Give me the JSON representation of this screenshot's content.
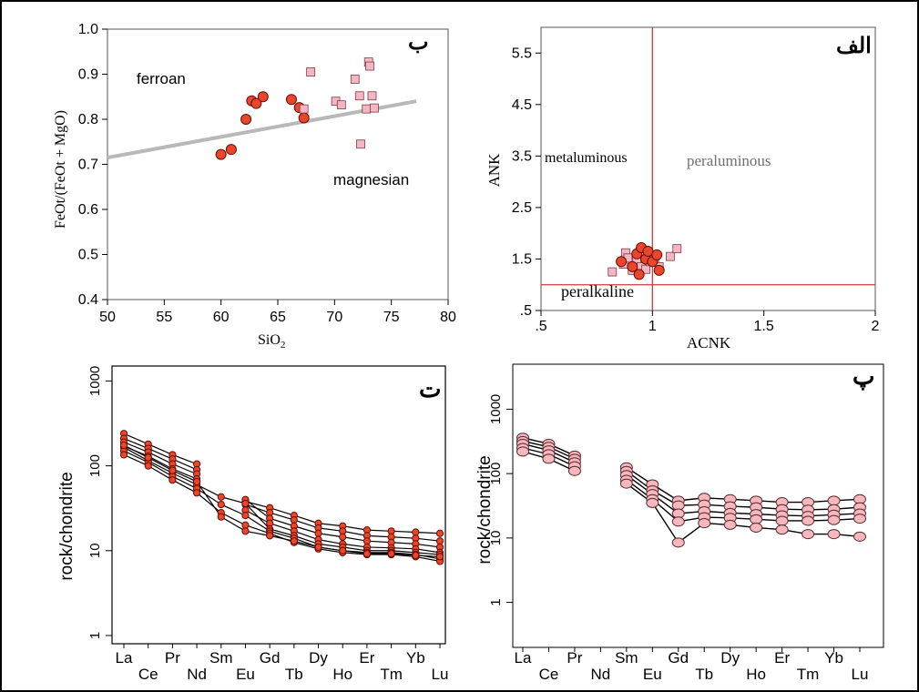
{
  "figure": {
    "border_color": "#000000",
    "marker_colors": {
      "red_circle_fill": "#e8472c",
      "red_circle_stroke": "#6b0a00",
      "pink_square_fill": "#f4b6c2",
      "pink_square_stroke": "#7a3b47",
      "pink_circle_fill": "#f6b7bd",
      "pink_circle_stroke": "#5a2a2e",
      "line_color": "#000000",
      "ref_line_red": "#d23a3a",
      "ref_line_gray": "#b8b8b8"
    }
  },
  "chart_data": [
    {
      "id": "B",
      "type": "scatter",
      "panel_label": "ب",
      "xlabel": "SiO",
      "xlabel_sub": "2",
      "ylabel": "FeOt/(FeOt + MgO)",
      "xlim": [
        50,
        80
      ],
      "ylim": [
        0.4,
        1.0
      ],
      "xticks": [
        "50",
        "55",
        "60",
        "65",
        "70",
        "75",
        "80"
      ],
      "yticks": [
        "0.4",
        "0.5",
        "0.6",
        "0.7",
        "0.8",
        "0.9",
        "1.0"
      ],
      "annotations": [
        {
          "text": "ferroan",
          "x": 53,
          "y": 0.895
        },
        {
          "text": "magnesian",
          "x": 71,
          "y": 0.715
        }
      ],
      "reference_line": {
        "x": [
          50,
          77.2
        ],
        "y": [
          0.715,
          0.84
        ]
      },
      "series": [
        {
          "marker": "circle",
          "points": [
            {
              "x": 60.0,
              "y": 0.722
            },
            {
              "x": 60.9,
              "y": 0.733
            },
            {
              "x": 62.2,
              "y": 0.8
            },
            {
              "x": 62.7,
              "y": 0.841
            },
            {
              "x": 63.1,
              "y": 0.835
            },
            {
              "x": 63.7,
              "y": 0.85
            },
            {
              "x": 66.2,
              "y": 0.844
            },
            {
              "x": 66.9,
              "y": 0.826
            },
            {
              "x": 67.3,
              "y": 0.803
            }
          ]
        },
        {
          "marker": "square",
          "points": [
            {
              "x": 67.3,
              "y": 0.823
            },
            {
              "x": 67.9,
              "y": 0.905
            },
            {
              "x": 70.1,
              "y": 0.84
            },
            {
              "x": 70.6,
              "y": 0.832
            },
            {
              "x": 71.8,
              "y": 0.889
            },
            {
              "x": 72.2,
              "y": 0.852
            },
            {
              "x": 72.3,
              "y": 0.745
            },
            {
              "x": 72.8,
              "y": 0.823
            },
            {
              "x": 73.0,
              "y": 0.927
            },
            {
              "x": 73.1,
              "y": 0.918
            },
            {
              "x": 73.3,
              "y": 0.852
            },
            {
              "x": 73.5,
              "y": 0.825
            }
          ]
        }
      ]
    },
    {
      "id": "A",
      "type": "scatter",
      "panel_label": "الف",
      "xlabel": "ACNK",
      "ylabel": "ANK",
      "xlim": [
        0.5,
        2.0
      ],
      "ylim": [
        0.5,
        6.0
      ],
      "xticks": [
        ".5",
        "1",
        "1.5",
        "2"
      ],
      "xtick_values": [
        0.5,
        1.0,
        1.5,
        2.0
      ],
      "yticks": [
        ".5",
        "1.5",
        "2.5",
        "3.5",
        "4.5",
        "5.5"
      ],
      "ytick_values": [
        0.5,
        1.5,
        2.5,
        3.5,
        4.5,
        5.5
      ],
      "annotations": [
        {
          "text": "metaluminous",
          "x": 0.72,
          "y": 3.5,
          "color": "#000000"
        },
        {
          "text": "peraluminous",
          "x": 1.3,
          "y": 3.4,
          "color": "#6e6e6e"
        },
        {
          "text": "peralkaline",
          "x": 0.8,
          "y": 0.75,
          "color": "#000000"
        }
      ],
      "reference_lines": {
        "vertical_x": 1.0,
        "horizontal_y": 1.0
      },
      "series": [
        {
          "marker": "square",
          "points": [
            {
              "x": 0.82,
              "y": 1.25
            },
            {
              "x": 0.87,
              "y": 1.4
            },
            {
              "x": 0.88,
              "y": 1.62
            },
            {
              "x": 0.89,
              "y": 1.52
            },
            {
              "x": 0.91,
              "y": 1.28
            },
            {
              "x": 0.93,
              "y": 1.47
            },
            {
              "x": 0.95,
              "y": 1.35
            },
            {
              "x": 0.97,
              "y": 1.3
            },
            {
              "x": 0.99,
              "y": 1.45
            },
            {
              "x": 1.01,
              "y": 1.5
            },
            {
              "x": 1.03,
              "y": 1.35
            },
            {
              "x": 1.08,
              "y": 1.55
            },
            {
              "x": 1.11,
              "y": 1.7
            }
          ]
        },
        {
          "marker": "circle",
          "points": [
            {
              "x": 0.86,
              "y": 1.45
            },
            {
              "x": 0.91,
              "y": 1.35
            },
            {
              "x": 0.93,
              "y": 1.6
            },
            {
              "x": 0.94,
              "y": 1.2
            },
            {
              "x": 0.95,
              "y": 1.72
            },
            {
              "x": 0.97,
              "y": 1.5
            },
            {
              "x": 0.98,
              "y": 1.65
            },
            {
              "x": 1.0,
              "y": 1.45
            },
            {
              "x": 1.02,
              "y": 1.58
            },
            {
              "x": 1.03,
              "y": 1.28
            }
          ]
        }
      ]
    },
    {
      "id": "T",
      "type": "line",
      "panel_label": "ت",
      "ylabel": "rock/chondrite",
      "yscale": "log",
      "ylim": [
        1,
        1000
      ],
      "yticks": [
        "1",
        "10",
        "100",
        "1000"
      ],
      "ytick_values": [
        1,
        10,
        100,
        1000
      ],
      "x_labels_top": [
        "La",
        "Pr",
        "Sm",
        "Gd",
        "Dy",
        "Er",
        "Yb"
      ],
      "x_labels_bottom": [
        "Ce",
        "Nd",
        "Eu",
        "Tb",
        "Ho",
        "Tm",
        "Lu"
      ],
      "elements": [
        "La",
        "Ce",
        "Pr",
        "Nd",
        "Sm",
        "Eu",
        "Gd",
        "Tb",
        "Dy",
        "Ho",
        "Er",
        "Tm",
        "Yb",
        "Lu"
      ],
      "series": [
        {
          "values": [
            240,
            180,
            135,
            105,
            null,
            38,
            32,
            26,
            21,
            19.5,
            17.5,
            17,
            16.5,
            16
          ]
        },
        {
          "values": [
            210,
            160,
            120,
            90,
            null,
            35,
            28,
            23,
            18.5,
            17,
            15,
            14.5,
            14,
            13
          ]
        },
        {
          "values": [
            190,
            145,
            105,
            80,
            null,
            40,
            24,
            19.5,
            16,
            14.5,
            13,
            12.5,
            12,
            11
          ]
        },
        {
          "values": [
            170,
            130,
            92,
            70,
            null,
            30,
            21,
            17,
            13.5,
            12,
            11,
            10.8,
            10.5,
            9.5
          ]
        },
        {
          "values": [
            165,
            115,
            82,
            60,
            43,
            36,
            18,
            15,
            12,
            11,
            10,
            10,
            9.5,
            9.0
          ]
        },
        {
          "values": [
            150,
            110,
            75,
            54,
            35,
            26,
            17,
            14,
            11,
            10,
            9.5,
            9.5,
            9.0,
            8.0
          ]
        },
        {
          "values": [
            135,
            100,
            68,
            48,
            28,
            20,
            16,
            12.5,
            10.5,
            9.5,
            9.0,
            9.0,
            8.5,
            7.5
          ]
        },
        {
          "values": [
            175,
            125,
            88,
            65,
            25,
            17,
            15,
            13,
            11,
            10,
            9.2,
            9.2,
            8.8,
            8.5
          ]
        }
      ]
    },
    {
      "id": "P",
      "type": "line",
      "panel_label": "پ",
      "ylabel": "rock/chondrite",
      "yscale": "log",
      "ylim": [
        0.1,
        10000
      ],
      "yticks": [
        "1",
        "10",
        "100",
        "1000"
      ],
      "ytick_values": [
        1,
        10,
        100,
        1000
      ],
      "x_labels_top": [
        "La",
        "Pr",
        "Sm",
        "Gd",
        "Dy",
        "Er",
        "Yb"
      ],
      "x_labels_bottom": [
        "Ce",
        "Nd",
        "Eu",
        "Tb",
        "Ho",
        "Tm",
        "Lu"
      ],
      "elements": [
        "La",
        "Ce",
        "Pr",
        "Nd",
        "Sm",
        "Eu",
        "Gd",
        "Tb",
        "Dy",
        "Ho",
        "Er",
        "Tm",
        "Yb",
        "Lu"
      ],
      "series": [
        {
          "values": [
            360,
            290,
            190,
            null,
            125,
            68,
            38,
            42,
            40,
            38,
            36,
            36,
            38,
            40
          ]
        },
        {
          "values": [
            320,
            260,
            170,
            null,
            110,
            55,
            32,
            33,
            31,
            30,
            28,
            27.5,
            28,
            30
          ]
        },
        {
          "values": [
            290,
            230,
            150,
            null,
            95,
            48,
            24,
            26,
            24.5,
            23.5,
            22.5,
            22,
            23,
            24
          ]
        },
        {
          "values": [
            250,
            200,
            130,
            null,
            80,
            40,
            18,
            21,
            20.5,
            19.5,
            18.5,
            18.5,
            19,
            20
          ]
        },
        {
          "values": [
            220,
            170,
            110,
            null,
            70,
            35,
            8.5,
            17,
            16,
            14.5,
            13.5,
            11.5,
            11.5,
            10.5
          ]
        }
      ]
    }
  ]
}
